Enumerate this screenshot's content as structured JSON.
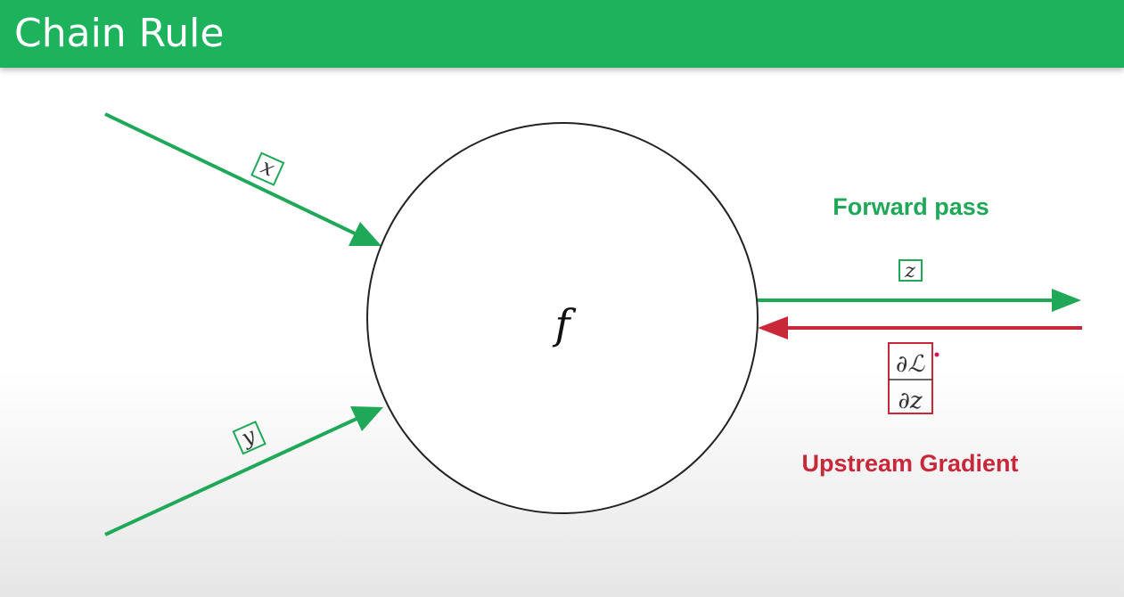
{
  "header": {
    "title": "Chain Rule"
  },
  "node": {
    "label": "f"
  },
  "inputs": {
    "x_label": "x",
    "y_label": "y"
  },
  "output": {
    "z_label": "z"
  },
  "gradient": {
    "numerator": "∂ℒ",
    "denominator": "∂z"
  },
  "labels": {
    "forward_pass": "Forward pass",
    "upstream_gradient": "Upstream Gradient"
  },
  "colors": {
    "header": "#1db25c",
    "forward": "#1fa858",
    "backward": "#c8283a",
    "node_stroke": "#222222"
  }
}
